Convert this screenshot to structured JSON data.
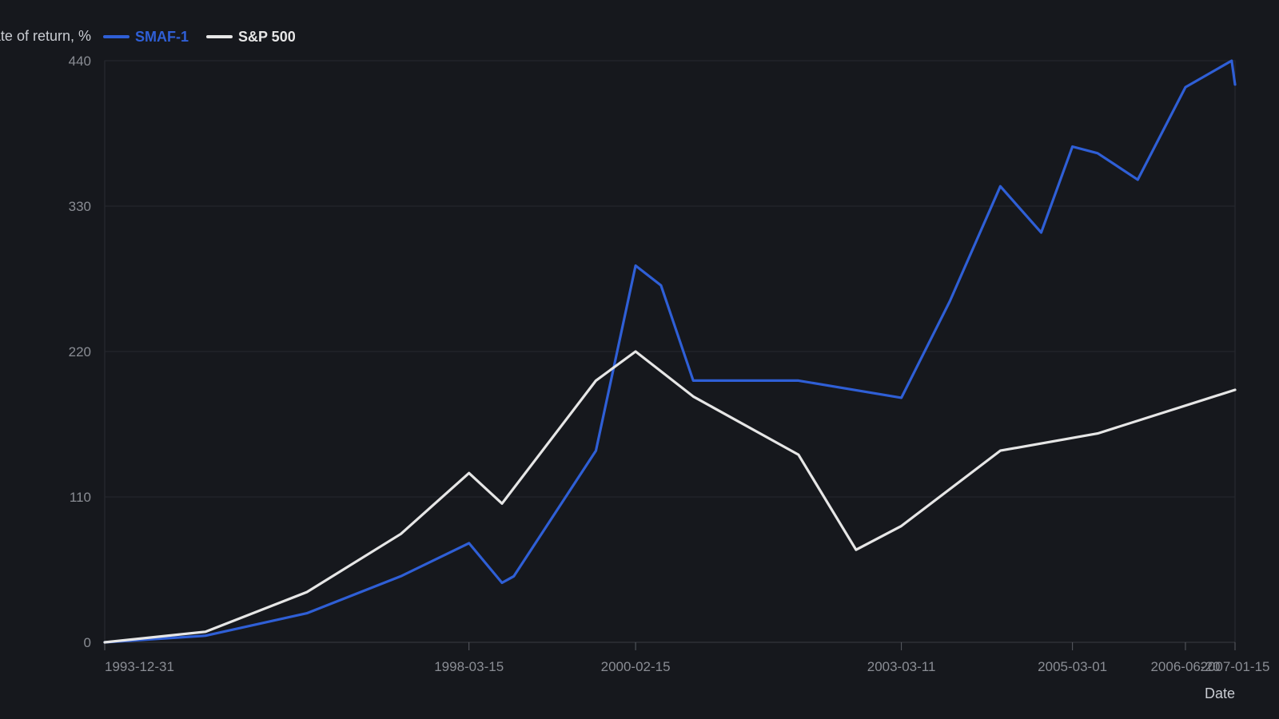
{
  "chart_data": {
    "type": "line",
    "ylabel": "Rate of return, %",
    "xlabel": "Date",
    "ylim": [
      0,
      440
    ],
    "y_ticks": [
      0,
      110,
      220,
      330,
      440
    ],
    "x_range": [
      "1993-12-31",
      "2007-01-15"
    ],
    "x_ticks": [
      "1993-12-31",
      "1998-03-15",
      "2000-02-15",
      "2003-03-11",
      "2005-03-01",
      "2006-06-20",
      "2007-01-15"
    ],
    "grid": true,
    "legend_position": "top-left",
    "series": [
      {
        "name": "SMAF-1",
        "color": "#2f5fd6",
        "points": [
          [
            "1993-12-31",
            0
          ],
          [
            "1995-03-01",
            5
          ],
          [
            "1996-05-01",
            22
          ],
          [
            "1997-06-01",
            50
          ],
          [
            "1998-03-15",
            75
          ],
          [
            "1998-08-01",
            45
          ],
          [
            "1998-09-20",
            50
          ],
          [
            "1999-09-01",
            145
          ],
          [
            "2000-02-15",
            285
          ],
          [
            "2000-06-01",
            270
          ],
          [
            "2000-10-15",
            198
          ],
          [
            "2002-01-01",
            198
          ],
          [
            "2003-03-11",
            185
          ],
          [
            "2003-10-01",
            258
          ],
          [
            "2004-05-01",
            345
          ],
          [
            "2004-10-20",
            310
          ],
          [
            "2005-03-01",
            375
          ],
          [
            "2005-06-15",
            370
          ],
          [
            "2005-12-01",
            350
          ],
          [
            "2006-06-20",
            420
          ],
          [
            "2007-01-01",
            440
          ],
          [
            "2007-01-15",
            422
          ]
        ]
      },
      {
        "name": "S&P 500",
        "color": "#e6e6e6",
        "points": [
          [
            "1993-12-31",
            0
          ],
          [
            "1995-03-01",
            8
          ],
          [
            "1996-05-01",
            38
          ],
          [
            "1997-06-01",
            82
          ],
          [
            "1998-03-15",
            128
          ],
          [
            "1998-08-01",
            105
          ],
          [
            "1999-09-01",
            198
          ],
          [
            "2000-02-15",
            220
          ],
          [
            "2000-10-15",
            186
          ],
          [
            "2002-01-01",
            142
          ],
          [
            "2002-09-01",
            70
          ],
          [
            "2003-03-11",
            88
          ],
          [
            "2004-05-01",
            145
          ],
          [
            "2005-06-15",
            158
          ],
          [
            "2007-01-15",
            191
          ]
        ]
      }
    ]
  }
}
